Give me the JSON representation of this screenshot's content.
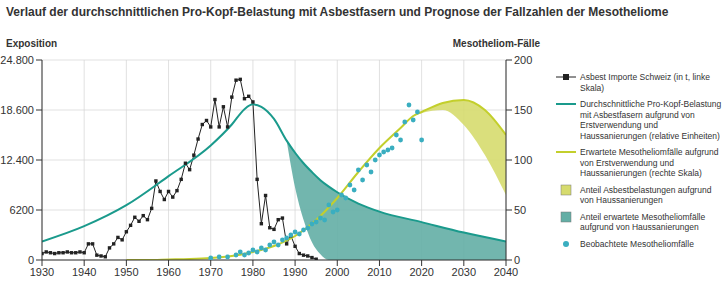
{
  "chart_data": {
    "type": "line",
    "title": "Verlauf der durchschnittlichen Pro-Kopf-Belastung mit Asbestfasern und Prognose der Fallzahlen der Mesotheliome",
    "y_label": "Exposition",
    "y2_label": "Mesotheliom-Fälle",
    "xlim": [
      1930,
      2040
    ],
    "xticks": [
      1930,
      1940,
      1950,
      1960,
      1970,
      1980,
      1990,
      2000,
      2010,
      2020,
      2030,
      2040
    ],
    "ylim": [
      0,
      24800
    ],
    "yticks": [
      0,
      6200,
      {
        "value": 12400,
        "label": "12.400"
      },
      {
        "value": 18600,
        "label": "18.600"
      },
      {
        "value": 24800,
        "label": "24.800"
      }
    ],
    "y2lim": [
      0,
      200
    ],
    "y2ticks": [
      0,
      50,
      100,
      150,
      200
    ],
    "grid": true,
    "series": [
      {
        "name": "Asbest Importe Schweiz (in t, linke Skala)",
        "type": "line",
        "color": "#222222",
        "marker": "square",
        "axis": "y",
        "x": [
          1930,
          1931,
          1932,
          1933,
          1934,
          1935,
          1936,
          1937,
          1938,
          1939,
          1940,
          1941,
          1942,
          1943,
          1944,
          1945,
          1946,
          1947,
          1948,
          1949,
          1950,
          1951,
          1952,
          1953,
          1954,
          1955,
          1956,
          1957,
          1958,
          1959,
          1960,
          1961,
          1962,
          1963,
          1964,
          1965,
          1966,
          1967,
          1968,
          1969,
          1970,
          1971,
          1972,
          1973,
          1974,
          1975,
          1976,
          1977,
          1978,
          1979,
          1980,
          1981,
          1982,
          1983,
          1984,
          1985,
          1986,
          1987,
          1988,
          1989,
          1990,
          1991,
          1992,
          1993,
          1994,
          1995
        ],
        "values": [
          800,
          1000,
          900,
          800,
          900,
          900,
          1000,
          900,
          900,
          1000,
          900,
          2000,
          2000,
          600,
          500,
          400,
          1500,
          2000,
          2800,
          2500,
          3500,
          4300,
          5300,
          4800,
          5500,
          5000,
          6400,
          9800,
          8500,
          7500,
          8500,
          7800,
          8600,
          10000,
          12000,
          11200,
          13000,
          15000,
          16800,
          17300,
          16500,
          19900,
          16500,
          19000,
          16500,
          20200,
          22300,
          22400,
          20000,
          20300,
          19600,
          10000,
          4500,
          8000,
          4000,
          3800,
          5000,
          5200,
          2000,
          3000,
          1700,
          800,
          600,
          500,
          300,
          100
        ]
      },
      {
        "name": "Durchschnittliche Pro-Kopf-Belastung mit Asbestfasern aufgrund von Erstverwendung und Haussanierungen (relative Einheiten)",
        "type": "line",
        "color": "#1a9a8c",
        "axis": "y",
        "x": [
          1930,
          1940,
          1950,
          1960,
          1970,
          1975,
          1978,
          1980,
          1982,
          1985,
          1988,
          1990,
          1992,
          1994,
          1996,
          1998,
          2000,
          2005,
          2010,
          2020,
          2030,
          2040
        ],
        "values": [
          2300,
          4200,
          6800,
          10400,
          14200,
          16800,
          18700,
          19300,
          19000,
          17500,
          14800,
          13300,
          12000,
          10900,
          9900,
          9100,
          8400,
          7000,
          6000,
          4700,
          3400,
          2300
        ]
      },
      {
        "name": "Erwartete Mesotheliomfälle aufgrund von Erstverwendung und Haussanierungen (rechte Skala)",
        "type": "line",
        "color": "#c3cf2c",
        "axis": "y2",
        "x": [
          1950,
          1955,
          1960,
          1965,
          1970,
          1975,
          1980,
          1985,
          1990,
          1995,
          2000,
          2005,
          2010,
          2015,
          2018,
          2020,
          2025,
          2030,
          2035,
          2040
        ],
        "values": [
          0,
          0,
          0.5,
          1,
          2,
          4,
          8,
          14,
          24,
          40,
          62,
          88,
          112,
          132,
          144,
          148,
          157,
          160,
          150,
          125
        ]
      },
      {
        "name": "Anteil Asbestbelastungen aufgrund von Haussanierungen",
        "type": "area",
        "color": "#d6db6e",
        "axis": "y2",
        "x": [
          2018,
          2020,
          2025,
          2030,
          2035,
          2040
        ],
        "low": [
          144,
          147,
          150,
          135,
          105,
          65
        ],
        "high": [
          144,
          148,
          157,
          160,
          150,
          125
        ]
      },
      {
        "name": "Anteil erwartete Mesotheliomfälle aufgrund von Haussanierungen",
        "type": "area",
        "color": "#63aea5",
        "axis": "y",
        "x": [
          1988,
          1990,
          1992,
          1994,
          1996,
          1998,
          2000,
          2005,
          2010,
          2020,
          2030,
          2040
        ],
        "low": [
          14800,
          9000,
          5000,
          2200,
          700,
          0,
          0,
          0,
          0,
          0,
          0,
          0
        ],
        "high": [
          14800,
          13300,
          12000,
          10900,
          9900,
          9100,
          8400,
          7000,
          6000,
          4700,
          3400,
          2300
        ]
      },
      {
        "name": "Beobachtete Mesotheliomfälle",
        "type": "scatter",
        "color": "#3aaec0",
        "marker": "circle",
        "axis": "y2",
        "x": [
          1970,
          1972,
          1974,
          1976,
          1977,
          1978,
          1979,
          1980,
          1981,
          1982,
          1983,
          1984,
          1985,
          1986,
          1987,
          1988,
          1989,
          1990,
          1991,
          1992,
          1993,
          1994,
          1995,
          1996,
          1997,
          1998,
          1999,
          2000,
          2001,
          2002,
          2003,
          2004,
          2005,
          2006,
          2007,
          2008,
          2009,
          2010,
          2011,
          2012,
          2013,
          2014,
          2015,
          2016,
          2017,
          2018,
          2019,
          2020
        ],
        "values": [
          2,
          3,
          3,
          5,
          8,
          5,
          7,
          10,
          8,
          12,
          10,
          15,
          18,
          15,
          20,
          22,
          25,
          28,
          26,
          30,
          32,
          36,
          38,
          42,
          40,
          55,
          48,
          50,
          65,
          62,
          75,
          70,
          90,
          80,
          95,
          88,
          100,
          105,
          108,
          110,
          112,
          125,
          120,
          138,
          155,
          140,
          148,
          120
        ]
      }
    ]
  }
}
